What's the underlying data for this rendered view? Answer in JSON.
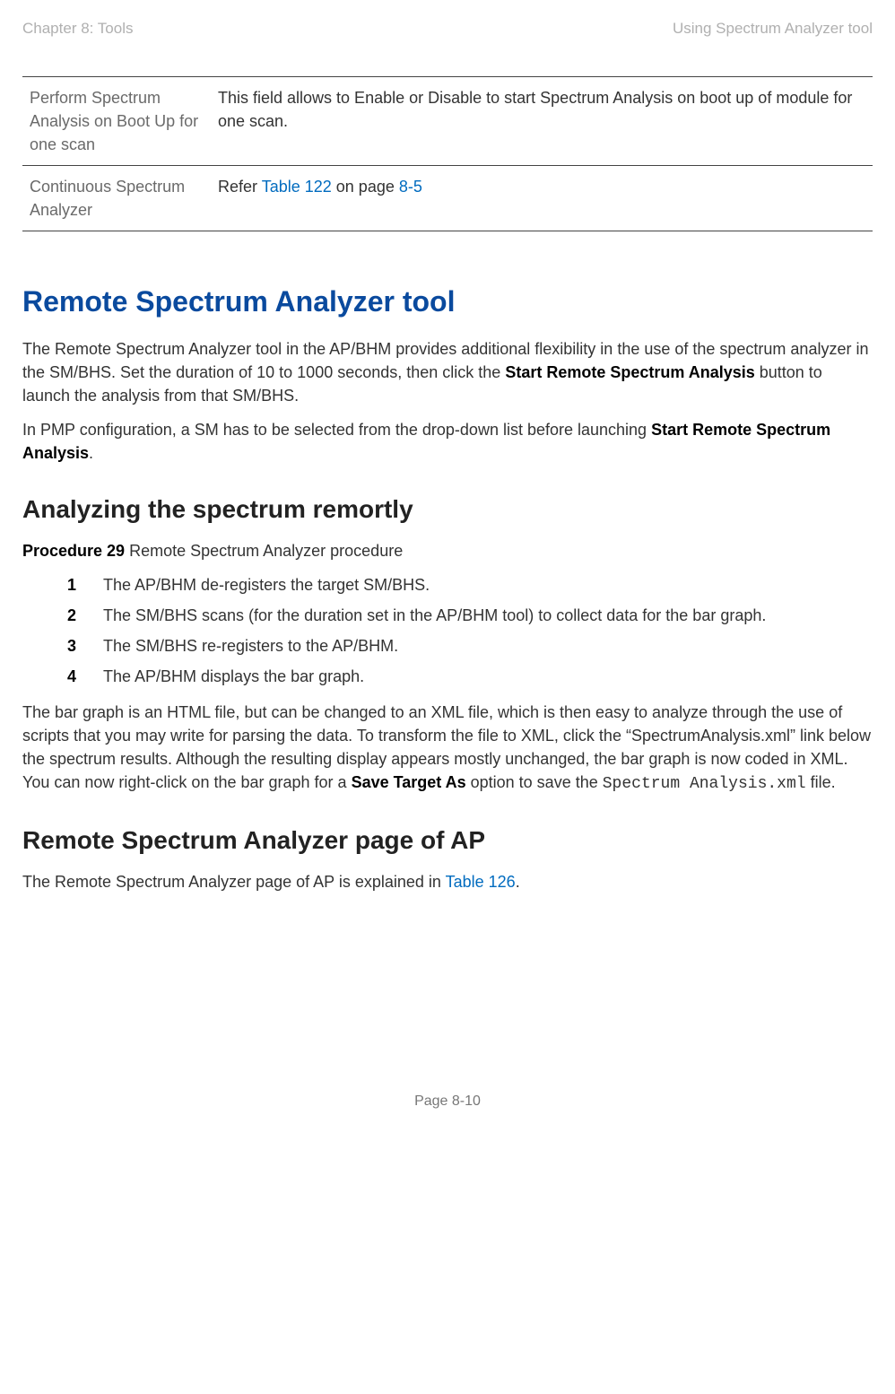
{
  "header": {
    "left": "Chapter 8:  Tools",
    "right": "Using Spectrum Analyzer tool"
  },
  "table": {
    "rows": [
      {
        "label": "Perform Spectrum Analysis on Boot Up for one scan",
        "desc_plain": "This field allows to Enable or Disable to start Spectrum Analysis on boot up of module for one scan.",
        "desc_prefix": "",
        "link1": "",
        "mid": "",
        "link2": "",
        "suffix": ""
      },
      {
        "label": "Continuous Spectrum Analyzer",
        "desc_plain": "",
        "desc_prefix": "Refer ",
        "link1": "Table 122",
        "mid": " on page ",
        "link2": "8-5",
        "suffix": ""
      }
    ]
  },
  "section1": {
    "title": "Remote Spectrum Analyzer tool",
    "p1_a": "The Remote Spectrum Analyzer tool in the AP/BHM provides additional flexibility in the use of the spectrum analyzer in the SM/BHS. Set the duration of 10 to 1000 seconds, then click the ",
    "p1_b1": "Start Remote Spectrum Analysis",
    "p1_c": " button to launch the analysis from that SM/BHS.",
    "p2_a": "In PMP configuration, a SM has to be selected from the drop-down list before launching ",
    "p2_b1": "Start Remote Spectrum Analysis",
    "p2_c": "."
  },
  "section2": {
    "title": "Analyzing the spectrum remortly",
    "proc_label": "Procedure 29",
    "proc_desc": "  Remote Spectrum Analyzer procedure",
    "steps": [
      {
        "n": "1",
        "t": "The AP/BHM de-registers the target SM/BHS."
      },
      {
        "n": "2",
        "t": "The SM/BHS scans (for the duration set in the AP/BHM tool) to collect data for the bar graph."
      },
      {
        "n": "3",
        "t": "The SM/BHS re-registers to the AP/BHM."
      },
      {
        "n": "4",
        "t": "The AP/BHM displays the bar graph."
      }
    ],
    "p3_a": "The bar graph is an HTML file, but can be changed to an XML file, which is then easy to analyze through the use of scripts that you may write for parsing the data. To transform the file to XML, click the “SpectrumAnalysis.xml” link below the spectrum results. Although the resulting display appears mostly unchanged, the bar graph is now coded in XML. You can now right-click on the bar graph for a ",
    "p3_b1": "Save Target As",
    "p3_c": " option to save the ",
    "p3_code": "Spectrum Analysis.xml",
    "p3_d": " file."
  },
  "section3": {
    "title": "Remote Spectrum Analyzer page of AP",
    "p1_a": "The Remote Spectrum Analyzer page of AP is explained in ",
    "p1_link": "Table 126",
    "p1_b": "."
  },
  "footer": {
    "text": "Page 8-10"
  },
  "colors": {
    "heading_blue": "#0a4a9e",
    "link_blue": "#006bbf",
    "body_text": "#333333",
    "muted": "#b0b0b0"
  }
}
